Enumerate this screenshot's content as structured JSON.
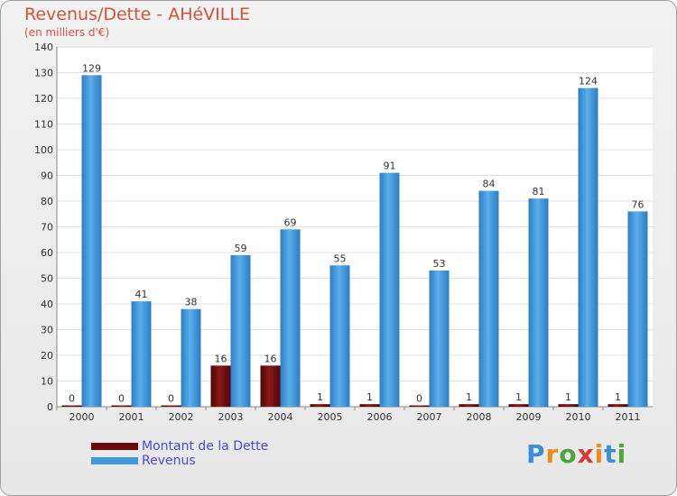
{
  "chart_data": {
    "type": "bar",
    "title": "Revenus/Dette - AHéVILLE",
    "subtitle": "(en milliers d'€)",
    "categories": [
      "2000",
      "2001",
      "2002",
      "2003",
      "2004",
      "2005",
      "2006",
      "2007",
      "2008",
      "2009",
      "2010",
      "2011"
    ],
    "series": [
      {
        "name": "Montant de la Dette",
        "color": "#6b0a0a",
        "values": [
          0,
          0,
          0,
          16,
          16,
          1,
          1,
          0,
          1,
          1,
          1,
          1
        ]
      },
      {
        "name": "Revenus",
        "color": "#3f99e0",
        "values": [
          129,
          41,
          38,
          59,
          69,
          55,
          91,
          53,
          84,
          81,
          124,
          76
        ]
      }
    ],
    "ylim": [
      0,
      140
    ],
    "yticks": [
      0,
      10,
      20,
      30,
      40,
      50,
      60,
      70,
      80,
      90,
      100,
      110,
      120,
      130,
      140
    ],
    "grid": true,
    "legend_position": "bottom-left"
  },
  "logo": {
    "text": "Proxiti",
    "letters": [
      "P",
      "r",
      "o",
      "x",
      "i",
      "t",
      "i"
    ],
    "colors": [
      "#3a8fd8",
      "#f08a1c",
      "#4aa83a",
      "#d83a3a",
      "#f08a1c",
      "#3a8fd8",
      "#4aa83a"
    ]
  }
}
